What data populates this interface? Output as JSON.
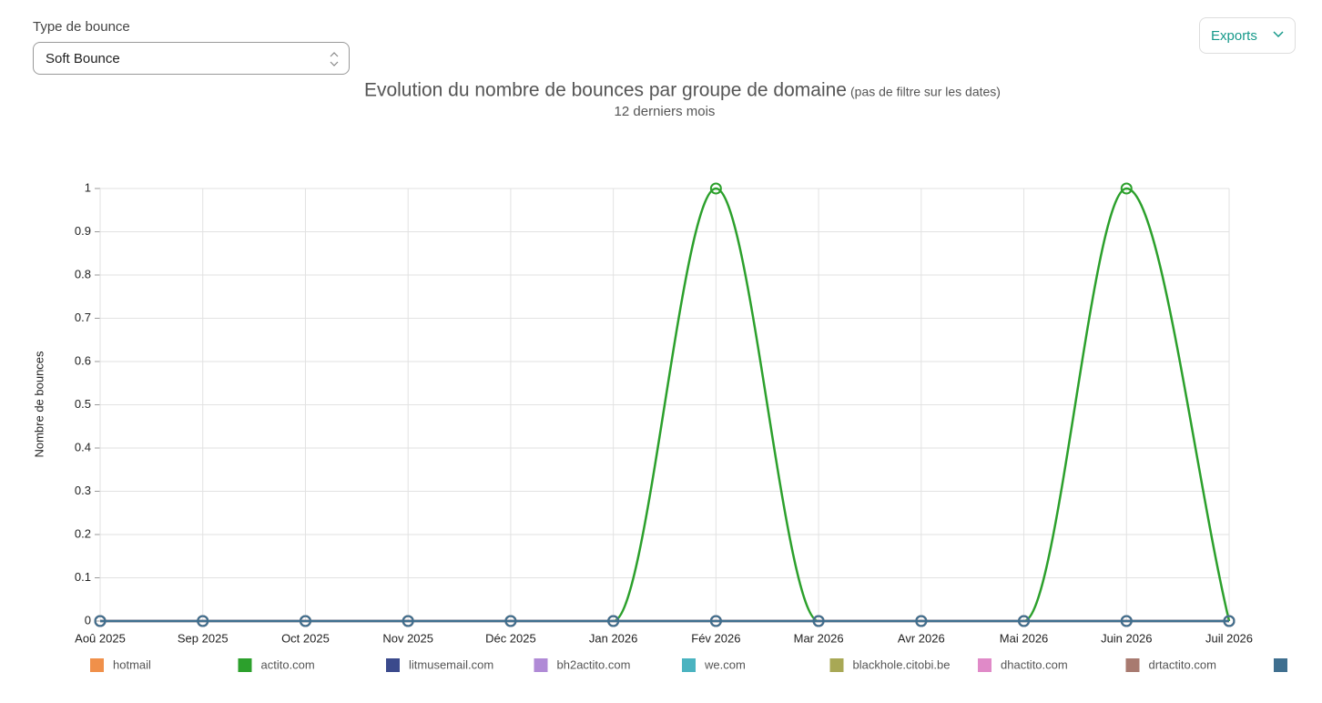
{
  "filter": {
    "label": "Type de bounce",
    "value": "Soft Bounce"
  },
  "exports": "Exports",
  "chart_data": {
    "type": "line",
    "title": "Evolution du nombre de bounces par groupe de domaine",
    "title_note": "(pas de filtre sur les dates)",
    "subtitle": "12 derniers mois",
    "y_label": "Nombre de bounces",
    "categories": [
      "Aoû 2025",
      "Sep 2025",
      "Oct 2025",
      "Nov 2025",
      "Déc 2025",
      "Jan 2026",
      "Fév 2026",
      "Mar 2026",
      "Avr 2026",
      "Mai 2026",
      "Juin 2026",
      "Juil 2026"
    ],
    "ylim": [
      0,
      1
    ],
    "yticks": [
      0,
      0.1,
      0.2,
      0.3,
      0.4,
      0.5,
      0.6,
      0.7,
      0.8,
      0.9,
      1
    ],
    "grid": true,
    "legend": "bottom",
    "series": [
      {
        "name": "hotmail",
        "color": "#f0904a",
        "values": [
          0,
          0,
          0,
          0,
          0,
          0,
          0,
          0,
          0,
          0,
          0,
          0
        ]
      },
      {
        "name": "actito.com",
        "color": "#2ca02c",
        "values": [
          0,
          0,
          0,
          0,
          0,
          0,
          1,
          0,
          0,
          0,
          1,
          0
        ]
      },
      {
        "name": "litmusemail.com",
        "color": "#3b4a8c",
        "values": [
          0,
          0,
          0,
          0,
          0,
          0,
          0,
          0,
          0,
          0,
          0,
          0
        ]
      },
      {
        "name": "bh2actito.com",
        "color": "#b08ad6",
        "values": [
          0,
          0,
          0,
          0,
          0,
          0,
          0,
          0,
          0,
          0,
          0,
          0
        ]
      },
      {
        "name": "we.com",
        "color": "#4ab3c0",
        "values": [
          0,
          0,
          0,
          0,
          0,
          0,
          0,
          0,
          0,
          0,
          0,
          0
        ]
      },
      {
        "name": "blackhole.citobi.be",
        "color": "#a8a855",
        "values": [
          0,
          0,
          0,
          0,
          0,
          0,
          0,
          0,
          0,
          0,
          0,
          0
        ]
      },
      {
        "name": "dhactito.com",
        "color": "#e08ac8",
        "values": [
          0,
          0,
          0,
          0,
          0,
          0,
          0,
          0,
          0,
          0,
          0,
          0
        ]
      },
      {
        "name": "drtactito.com",
        "color": "#a87a70",
        "values": [
          0,
          0,
          0,
          0,
          0,
          0,
          0,
          0,
          0,
          0,
          0,
          0
        ]
      },
      {
        "color": "#3f6f8f",
        "values": [
          0,
          0,
          0,
          0,
          0,
          0,
          0,
          0,
          0,
          0,
          0,
          0
        ]
      }
    ]
  }
}
